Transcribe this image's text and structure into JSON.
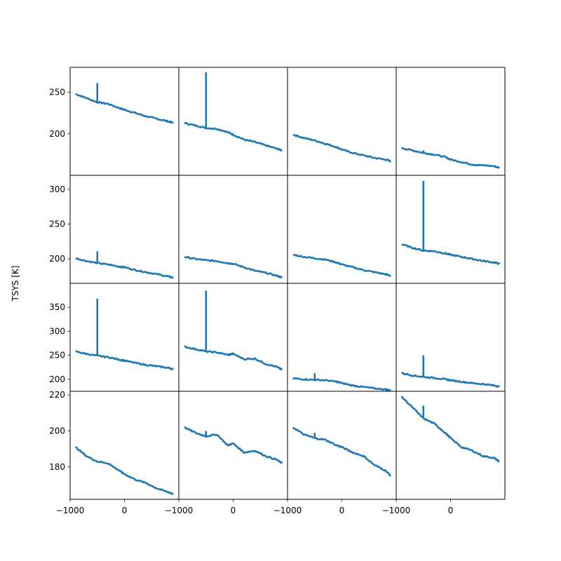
{
  "chart_data": {
    "type": "line",
    "grid": false,
    "layout": "4x4",
    "ylabel": "TSYS [K]",
    "line_color": "#1f77b4",
    "xlim": [
      -1000,
      1000
    ],
    "xticks": [
      -1000,
      0
    ],
    "row_ylim": [
      [
        150,
        280
      ],
      [
        165,
        320
      ],
      [
        175,
        400
      ],
      [
        162,
        222
      ]
    ],
    "row_yticks": [
      [
        200,
        250
      ],
      [
        200,
        250,
        300
      ],
      [
        200,
        250,
        300,
        350
      ],
      [
        180,
        200,
        220
      ]
    ],
    "panels": [
      {
        "row": 0,
        "col": 0,
        "x": [
          -900,
          -700,
          -500,
          -300,
          -100,
          0,
          200,
          400,
          600,
          800,
          900
        ],
        "y": [
          248,
          243,
          238,
          236,
          231,
          229,
          225,
          221,
          218,
          215,
          213
        ],
        "spike": {
          "x": -500,
          "top": 261,
          "base": 238
        }
      },
      {
        "row": 0,
        "col": 1,
        "x": [
          -900,
          -700,
          -500,
          -300,
          -100,
          0,
          200,
          400,
          600,
          800,
          900
        ],
        "y": [
          213,
          210,
          207,
          206,
          202,
          199,
          193,
          190,
          186,
          182,
          180
        ],
        "spike": {
          "x": -500,
          "top": 274,
          "base": 207
        }
      },
      {
        "row": 0,
        "col": 2,
        "x": [
          -900,
          -700,
          -500,
          -300,
          -100,
          0,
          200,
          400,
          600,
          800,
          900
        ],
        "y": [
          199,
          195,
          192,
          188,
          184,
          181,
          177,
          174,
          171,
          169,
          167
        ]
      },
      {
        "row": 0,
        "col": 3,
        "x": [
          -900,
          -700,
          -500,
          -300,
          -100,
          0,
          200,
          400,
          600,
          800,
          900
        ],
        "y": [
          183,
          180,
          177,
          175,
          172,
          169,
          166,
          163,
          162,
          161,
          159
        ],
        "spike": {
          "x": -500,
          "top": 180,
          "base": 177
        }
      },
      {
        "row": 1,
        "col": 0,
        "x": [
          -900,
          -700,
          -500,
          -300,
          -100,
          0,
          200,
          400,
          600,
          800,
          900
        ],
        "y": [
          201,
          197,
          194,
          192,
          189,
          188,
          184,
          181,
          178,
          175,
          173
        ],
        "spike": {
          "x": -500,
          "top": 211,
          "base": 194
        }
      },
      {
        "row": 1,
        "col": 1,
        "x": [
          -900,
          -700,
          -500,
          -300,
          -100,
          0,
          200,
          400,
          600,
          800,
          900
        ],
        "y": [
          203,
          200,
          198,
          197,
          194,
          193,
          188,
          183,
          180,
          176,
          173
        ]
      },
      {
        "row": 1,
        "col": 2,
        "x": [
          -900,
          -700,
          -500,
          -300,
          -100,
          0,
          200,
          400,
          600,
          800,
          900
        ],
        "y": [
          206,
          203,
          201,
          199,
          195,
          192,
          188,
          184,
          181,
          178,
          176
        ]
      },
      {
        "row": 1,
        "col": 3,
        "x": [
          -900,
          -700,
          -500,
          -300,
          -100,
          0,
          200,
          400,
          600,
          800,
          900
        ],
        "y": [
          221,
          216,
          212,
          211,
          208,
          206,
          203,
          200,
          197,
          195,
          193
        ],
        "spike": {
          "x": -500,
          "top": 312,
          "base": 212
        }
      },
      {
        "row": 2,
        "col": 0,
        "x": [
          -900,
          -700,
          -500,
          -300,
          -100,
          0,
          200,
          400,
          600,
          800,
          900
        ],
        "y": [
          258,
          253,
          249,
          246,
          241,
          239,
          234,
          230,
          227,
          224,
          221
        ],
        "spike": {
          "x": -500,
          "top": 368,
          "base": 249
        }
      },
      {
        "row": 2,
        "col": 1,
        "x": [
          -900,
          -700,
          -500,
          -300,
          -100,
          0,
          200,
          400,
          600,
          800,
          900
        ],
        "y": [
          268,
          263,
          258,
          256,
          251,
          253,
          242,
          243,
          232,
          226,
          220
        ],
        "spike": {
          "x": -500,
          "top": 385,
          "base": 258
        }
      },
      {
        "row": 2,
        "col": 2,
        "x": [
          -900,
          -700,
          -500,
          -300,
          -100,
          0,
          200,
          400,
          600,
          800,
          900
        ],
        "y": [
          202,
          200,
          199,
          198,
          195,
          192,
          187,
          184,
          181,
          179,
          177
        ],
        "spike": {
          "x": -500,
          "top": 213,
          "base": 199
        }
      },
      {
        "row": 2,
        "col": 3,
        "x": [
          -900,
          -700,
          -500,
          -300,
          -100,
          0,
          200,
          400,
          600,
          800,
          900
        ],
        "y": [
          213,
          208,
          205,
          203,
          200,
          198,
          195,
          192,
          190,
          187,
          185
        ],
        "spike": {
          "x": -500,
          "top": 250,
          "base": 205
        }
      },
      {
        "row": 3,
        "col": 0,
        "x": [
          -900,
          -700,
          -500,
          -300,
          -100,
          0,
          200,
          400,
          600,
          800,
          900
        ],
        "y": [
          191,
          186,
          183,
          182,
          178,
          176,
          173,
          171,
          168,
          166,
          165
        ]
      },
      {
        "row": 3,
        "col": 1,
        "x": [
          -900,
          -700,
          -500,
          -300,
          -100,
          0,
          200,
          400,
          600,
          800,
          900
        ],
        "y": [
          202,
          199,
          197,
          198,
          192,
          193,
          188,
          189,
          186,
          184,
          182
        ],
        "spike": {
          "x": -500,
          "top": 200,
          "base": 197
        }
      },
      {
        "row": 3,
        "col": 2,
        "x": [
          -900,
          -700,
          -500,
          -300,
          -100,
          0,
          200,
          400,
          600,
          800,
          900
        ],
        "y": [
          202,
          198,
          196,
          195,
          192,
          191,
          188,
          186,
          181,
          178,
          175
        ],
        "spike": {
          "x": -500,
          "top": 199,
          "base": 196
        }
      },
      {
        "row": 3,
        "col": 3,
        "x": [
          -900,
          -700,
          -500,
          -300,
          -100,
          0,
          200,
          400,
          600,
          800,
          900
        ],
        "y": [
          219,
          213,
          207,
          204,
          199,
          196,
          191,
          189,
          186,
          185,
          183
        ],
        "spike": {
          "x": -500,
          "top": 214,
          "base": 207
        }
      }
    ]
  }
}
